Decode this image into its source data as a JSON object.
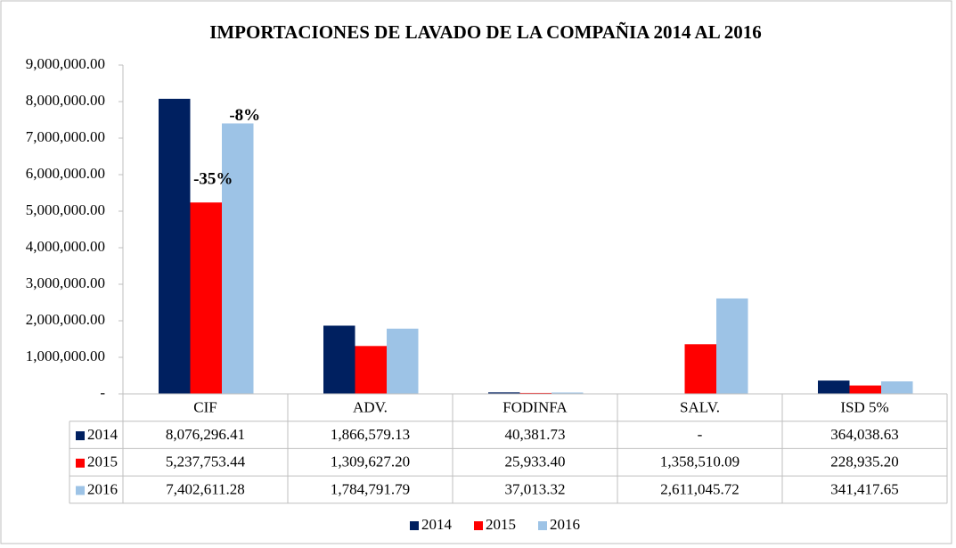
{
  "chart_data": {
    "type": "bar",
    "title": "IMPORTACIONES DE  LAVADO DE LA COMPAÑIA 2014 AL 2016",
    "categories": [
      "CIF",
      "ADV.",
      "FODINFA",
      "SALV.",
      "ISD 5%"
    ],
    "series": [
      {
        "name": "2014",
        "color": "#002060",
        "values": [
          8076296.41,
          1866579.13,
          40381.73,
          0,
          364038.63
        ],
        "value_labels": [
          "8,076,296.41",
          "1,866,579.13",
          "40,381.73",
          "-",
          "364,038.63"
        ]
      },
      {
        "name": "2015",
        "color": "#ff0000",
        "values": [
          5237753.44,
          1309627.2,
          25933.4,
          1358510.09,
          228935.2
        ],
        "value_labels": [
          "5,237,753.44",
          "1,309,627.20",
          "25,933.40",
          "1,358,510.09",
          "228,935.20"
        ]
      },
      {
        "name": "2016",
        "color": "#9dc3e6",
        "values": [
          7402611.28,
          1784791.79,
          37013.32,
          2611045.72,
          341417.65
        ],
        "value_labels": [
          "7,402,611.28",
          "1,784,791.79",
          "37,013.32",
          "2,611,045.72",
          "341,417.65"
        ]
      }
    ],
    "annotations": [
      {
        "text": "-35%"
      },
      {
        "text": "-8%"
      }
    ],
    "ylim": [
      0,
      9000000
    ],
    "yticks": [
      {
        "value": 0,
        "label": "-"
      },
      {
        "value": 1000000,
        "label": "1,000,000.00"
      },
      {
        "value": 2000000,
        "label": "2,000,000.00"
      },
      {
        "value": 3000000,
        "label": "3,000,000.00"
      },
      {
        "value": 4000000,
        "label": "4,000,000.00"
      },
      {
        "value": 5000000,
        "label": "5,000,000.00"
      },
      {
        "value": 6000000,
        "label": "6,000,000.00"
      },
      {
        "value": 7000000,
        "label": "7,000,000.00"
      },
      {
        "value": 8000000,
        "label": "8,000,000.00"
      },
      {
        "value": 9000000,
        "label": "9,000,000.00"
      }
    ],
    "grid": false,
    "legend": "bottom"
  }
}
